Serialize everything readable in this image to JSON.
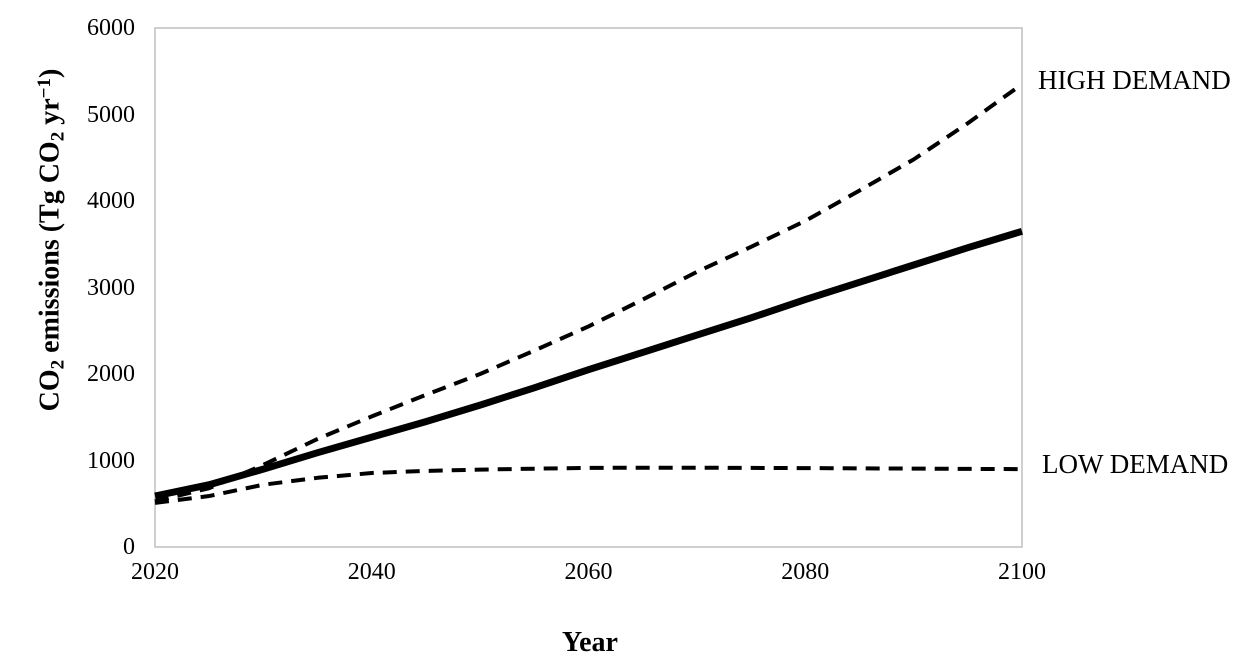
{
  "chart_data": {
    "type": "line",
    "title": "",
    "xlabel": "Year",
    "ylabel": "CO2 emissions (Tg CO2 yr-1)",
    "ylabel_rich": [
      {
        "t": "CO",
        "s": "n"
      },
      {
        "t": "2",
        "s": "sub"
      },
      {
        "t": " emissions (Tg CO",
        "s": "n"
      },
      {
        "t": "2",
        "s": "sub"
      },
      {
        "t": " yr",
        "s": "n"
      },
      {
        "t": "−1",
        "s": "sup"
      },
      {
        "t": ")",
        "s": "n"
      }
    ],
    "xlim": [
      2020,
      2100
    ],
    "ylim": [
      0,
      6000
    ],
    "x_ticks": [
      "2020",
      "2040",
      "2060",
      "2080",
      "2100"
    ],
    "y_ticks": [
      "0",
      "1000",
      "2000",
      "3000",
      "4000",
      "5000",
      "6000"
    ],
    "grid": false,
    "legend_position": "inline-right-annotations",
    "x": [
      2020,
      2025,
      2030,
      2035,
      2040,
      2045,
      2050,
      2055,
      2060,
      2065,
      2070,
      2075,
      2080,
      2085,
      2090,
      2095,
      2100
    ],
    "series": [
      {
        "name": "HIGH DEMAND",
        "style": "dashed",
        "values": [
          530,
          680,
          950,
          1250,
          1510,
          1760,
          2000,
          2270,
          2550,
          2860,
          3180,
          3470,
          3770,
          4120,
          4480,
          4900,
          5350
        ]
      },
      {
        "name": "",
        "style": "solid",
        "values": [
          590,
          720,
          900,
          1090,
          1270,
          1450,
          1640,
          1840,
          2050,
          2250,
          2450,
          2650,
          2860,
          3060,
          3260,
          3460,
          3650
        ]
      },
      {
        "name": "LOW DEMAND",
        "style": "dashed",
        "values": [
          510,
          590,
          720,
          800,
          855,
          880,
          895,
          905,
          915,
          917,
          917,
          915,
          912,
          909,
          906,
          903,
          900
        ]
      }
    ],
    "annotations": [
      {
        "text": "HIGH DEMAND"
      },
      {
        "text": "LOW DEMAND"
      }
    ],
    "colors": {
      "line": "#000000",
      "plot_border": "#bfbfbf",
      "background": "#ffffff"
    }
  }
}
